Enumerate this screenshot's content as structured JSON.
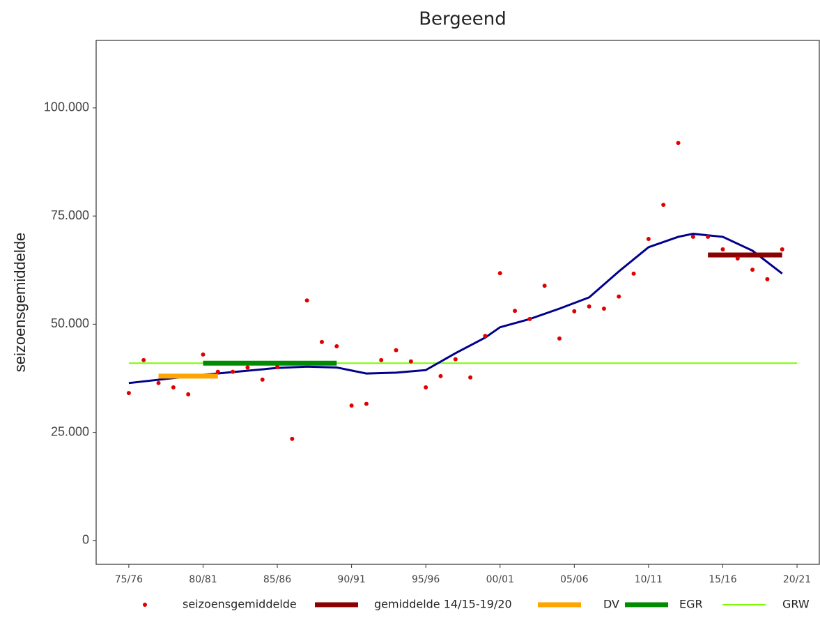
{
  "chart_data": {
    "type": "line",
    "title": "Bergeend",
    "y_label": "seizoensgemiddelde",
    "xlim": [
      1972.8,
      2021.5
    ],
    "xticks": [
      {
        "value": 1975,
        "label": "75/76"
      },
      {
        "value": 1980,
        "label": "80/81"
      },
      {
        "value": 1985,
        "label": "85/86"
      },
      {
        "value": 1990,
        "label": "90/91"
      },
      {
        "value": 1995,
        "label": "95/96"
      },
      {
        "value": 2000,
        "label": "00/01"
      },
      {
        "value": 2005,
        "label": "05/06"
      },
      {
        "value": 2010,
        "label": "10/11"
      },
      {
        "value": 2015,
        "label": "15/16"
      },
      {
        "value": 2020,
        "label": "20/21"
      }
    ],
    "ylim": [
      -5500,
      115600
    ],
    "yticks": [
      0,
      {
        "value": 25000,
        "label": "25.000"
      },
      {
        "value": 50000,
        "label": "50.000"
      },
      {
        "value": 75000,
        "label": "75.000"
      },
      {
        "value": 100000,
        "label": "100.000"
      }
    ],
    "grid": false,
    "series": [
      {
        "name": "seizoensgemiddelde",
        "color": "#e00000",
        "mark": "point",
        "x": [
          1975,
          1976,
          1977,
          1978,
          1979,
          1980,
          1981,
          1982,
          1983,
          1984,
          1985,
          1986,
          1987,
          1988,
          1989,
          1990,
          1991,
          1992,
          1993,
          1994,
          1995,
          1996,
          1997,
          1998,
          1999,
          2000,
          2001,
          2002,
          2003,
          2004,
          2005,
          2006,
          2007,
          2008,
          2009,
          2010,
          2011,
          2012,
          2013,
          2014,
          2015,
          2016,
          2017,
          2018,
          2019
        ],
        "values": [
          34100,
          41700,
          36400,
          35400,
          33800,
          43000,
          39000,
          39000,
          40000,
          37200,
          40100,
          23500,
          55500,
          45900,
          44900,
          31200,
          31600,
          41700,
          44000,
          41400,
          35400,
          38000,
          41900,
          37700,
          47300,
          61800,
          53100,
          51200,
          58900,
          46700,
          53000,
          54100,
          53600,
          56400,
          61700,
          69700,
          77600,
          91900,
          70200,
          70200,
          67300,
          65200,
          62600,
          60400,
          67300
        ]
      },
      {
        "color": "#00008b",
        "mark": "line",
        "x": [
          1975,
          1980,
          1985,
          1987,
          1989,
          1991,
          1993,
          1995,
          1997,
          1999,
          2000,
          2002,
          2004,
          2006,
          2008,
          2010,
          2012,
          2013,
          2015,
          2017,
          2019
        ],
        "values": [
          36400,
          38300,
          39900,
          40200,
          40000,
          38600,
          38800,
          39400,
          43300,
          46900,
          49300,
          51200,
          53600,
          56200,
          62200,
          67800,
          70200,
          70900,
          70200,
          67000,
          61700
        ]
      },
      {
        "name": "gemiddelde 14/15-19/20",
        "color": "#8b0000",
        "mark": "bar",
        "x": [
          2014,
          2019
        ],
        "values": [
          66000,
          66000
        ]
      },
      {
        "name": "DV",
        "color": "#ffa500",
        "mark": "bar",
        "x": [
          1977,
          1981
        ],
        "values": [
          38000,
          38000
        ]
      },
      {
        "name": "EGR",
        "color": "#008b00",
        "mark": "bar",
        "x": [
          1980,
          1989
        ],
        "values": [
          41000,
          41000
        ]
      },
      {
        "name": "GRW",
        "color": "#7cfc00",
        "mark": "thin",
        "x": [
          1975,
          2020
        ],
        "values": [
          41000,
          41000
        ]
      }
    ]
  }
}
